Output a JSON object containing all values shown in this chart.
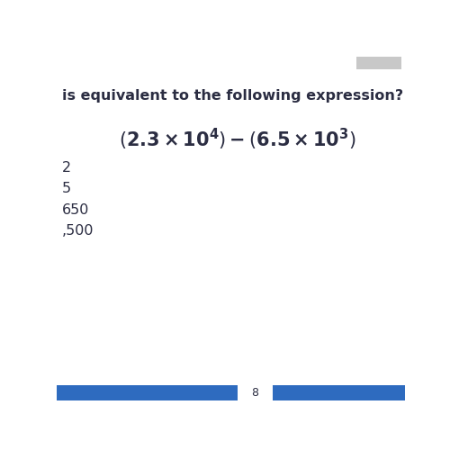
{
  "title": "is equivalent to the following expression?",
  "answer_options": [
    "2",
    "5",
    "650",
    ",500"
  ],
  "bg_color": "#ffffff",
  "text_color": "#2b2d42",
  "title_fontsize": 11.5,
  "expr_fontsize": 15,
  "answer_fontsize": 11.5,
  "footer_color": "#2e6bbf",
  "page_number": "8",
  "top_right_box_color": "#c8c8c8"
}
